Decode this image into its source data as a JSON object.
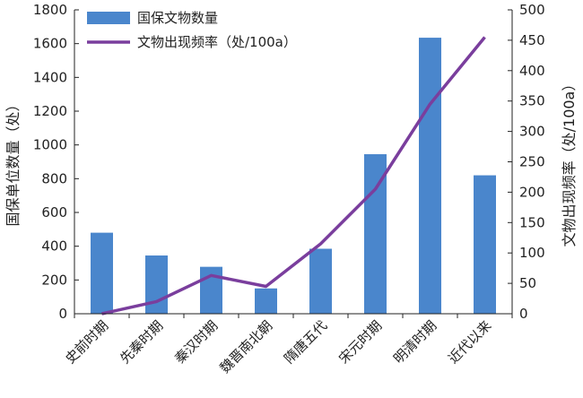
{
  "chart_data": {
    "type": "bar",
    "categories": [
      "史前时期",
      "先秦时期",
      "秦汉时期",
      "魏晋南北朝",
      "隋唐五代",
      "宋元时期",
      "明清时期",
      "近代以来"
    ],
    "series": [
      {
        "name": "国保文物数量",
        "type": "bar",
        "axis": "left",
        "color": "#4a86cc",
        "values": [
          480,
          345,
          278,
          150,
          385,
          945,
          1635,
          820
        ]
      },
      {
        "name": "文物出现频率（处/100a）",
        "type": "line",
        "axis": "right",
        "color": "#7a3e9d",
        "values": [
          0,
          20,
          63,
          45,
          115,
          205,
          345,
          455
        ]
      }
    ],
    "ylabel_left": "国保单位数量（处）",
    "ylabel_right": "文物出现频率（处/100a）",
    "ylim_left": [
      0,
      1800
    ],
    "yticks_left": [
      0,
      200,
      400,
      600,
      800,
      1000,
      1200,
      1400,
      1600,
      1800
    ],
    "ylim_right": [
      0,
      500
    ],
    "yticks_right": [
      0,
      50,
      100,
      150,
      200,
      250,
      300,
      350,
      400,
      450,
      500
    ],
    "legend_position": "top-left",
    "grid": false
  }
}
